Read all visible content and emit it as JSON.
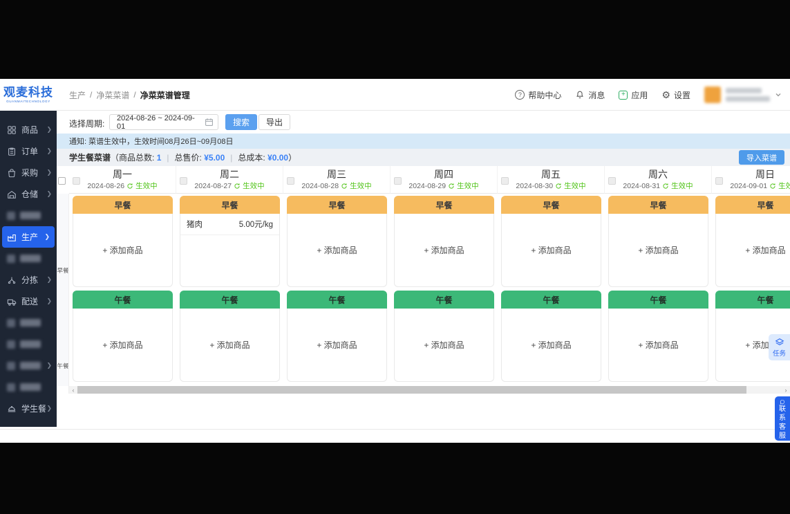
{
  "logo": {
    "title": "观麦科技",
    "subtitle": "GUANMAITECHNOLOGY"
  },
  "breadcrumb": {
    "items": [
      "生产",
      "净菜菜谱",
      "净菜菜谱管理"
    ],
    "separator": "/"
  },
  "header_menu": {
    "help": "帮助中心",
    "messages": "消息",
    "apps": "应用",
    "settings": "设置"
  },
  "sidebar": {
    "items": [
      {
        "label": "商品",
        "icon": "grid-icon",
        "arrow": true
      },
      {
        "label": "订单",
        "icon": "order-icon",
        "arrow": true
      },
      {
        "label": "采购",
        "icon": "purchase-bag-icon",
        "arrow": true
      },
      {
        "label": "仓储",
        "icon": "warehouse-icon",
        "arrow": true
      },
      {
        "redacted": true
      },
      {
        "label": "生产",
        "icon": "production-icon",
        "arrow": true,
        "active": true
      },
      {
        "redacted": true
      },
      {
        "label": "分拣",
        "icon": "sorting-icon",
        "arrow": true
      },
      {
        "label": "配送",
        "icon": "delivery-truck-icon",
        "arrow": true
      },
      {
        "redacted": true
      },
      {
        "redacted": true
      },
      {
        "redacted": true,
        "arrow": true
      },
      {
        "redacted": true
      },
      {
        "label": "学生餐",
        "icon": "student-meal-icon",
        "arrow": true
      }
    ]
  },
  "toolbar": {
    "period_label": "选择周期:",
    "date_range": "2024-08-26 ~ 2024-09-01",
    "search_label": "搜索",
    "export_label": "导出"
  },
  "notice": {
    "text": "通知: 菜谱生效中，生效时间08月26日~09月08日"
  },
  "summary": {
    "title": "学生餐菜谱",
    "open_paren": "（",
    "item_count_label": "商品总数:",
    "item_count": "1",
    "price_label": "总售价:",
    "price": "¥5.00",
    "cost_label": "总成本:",
    "cost": "¥0.00",
    "close_paren": "）",
    "separator": "|",
    "import_button": "导入菜谱"
  },
  "menu_grid": {
    "row_labels": {
      "breakfast": "早餐",
      "lunch": "午餐"
    },
    "meal_headers": {
      "breakfast": "早餐",
      "lunch": "午餐"
    },
    "status": "生效中",
    "add_label": "+ 添加商品",
    "columns": [
      {
        "day": "周一",
        "date": "2024-08-26",
        "breakfast": {
          "items": [],
          "show_add": true
        },
        "lunch": {
          "items": [],
          "show_add": true
        }
      },
      {
        "day": "周二",
        "date": "2024-08-27",
        "breakfast": {
          "items": [
            {
              "name": "猪肉",
              "price": "5.00元/kg"
            }
          ],
          "show_add": false
        },
        "lunch": {
          "items": [],
          "show_add": true
        }
      },
      {
        "day": "周三",
        "date": "2024-08-28",
        "breakfast": {
          "items": [],
          "show_add": true
        },
        "lunch": {
          "items": [],
          "show_add": true
        }
      },
      {
        "day": "周四",
        "date": "2024-08-29",
        "breakfast": {
          "items": [],
          "show_add": true
        },
        "lunch": {
          "items": [],
          "show_add": true
        }
      },
      {
        "day": "周五",
        "date": "2024-08-30",
        "breakfast": {
          "items": [],
          "show_add": true
        },
        "lunch": {
          "items": [],
          "show_add": true
        }
      },
      {
        "day": "周六",
        "date": "2024-08-31",
        "breakfast": {
          "items": [],
          "show_add": true
        },
        "lunch": {
          "items": [],
          "show_add": true
        }
      },
      {
        "day": "周日",
        "date": "2024-09-01",
        "breakfast": {
          "items": [],
          "show_add": true
        },
        "lunch": {
          "items": [],
          "show_add": true
        }
      }
    ]
  },
  "floating": {
    "tasks": "任务",
    "contact": "联系客服"
  },
  "colors": {
    "accent_blue": "#2563eb",
    "search_blue": "#5ba0ef",
    "breakfast_orange": "#f6bb5f",
    "lunch_green": "#3cb878",
    "status_green": "#52c41a",
    "notice_bg": "#d6e9f8",
    "summary_bg": "#eef1f5",
    "sidebar_bg": "#1e2634",
    "logo_blue": "#2a6dd9"
  }
}
